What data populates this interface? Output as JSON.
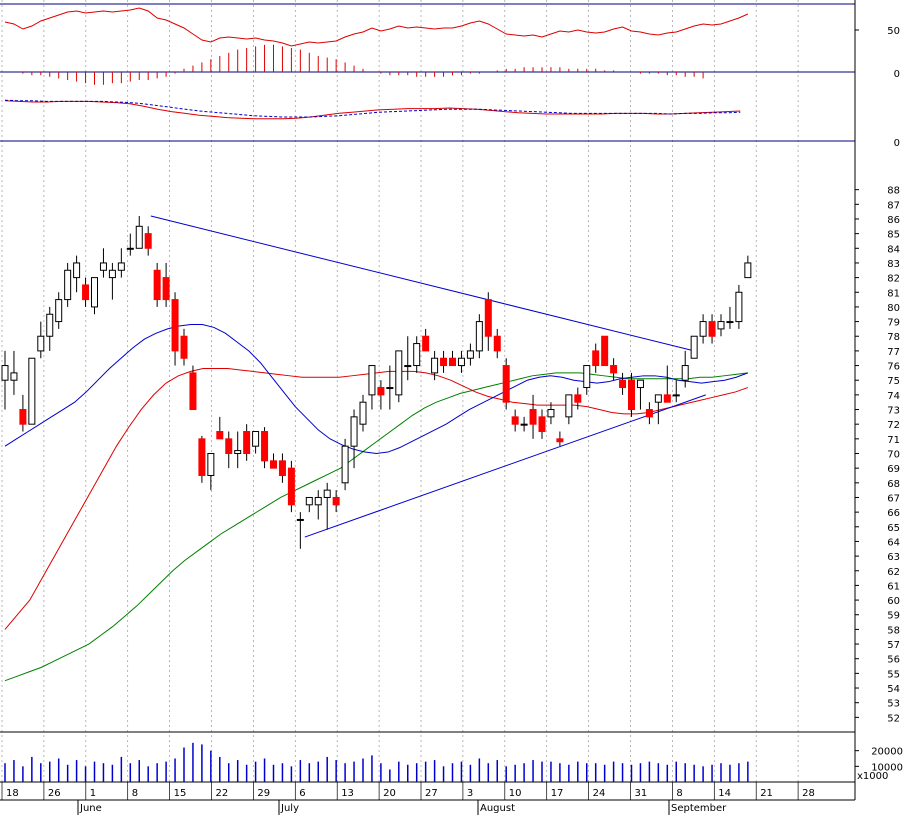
{
  "chart_data": {
    "type": "candlestick",
    "title": "",
    "colors": {
      "up": "#ffffff",
      "down": "#ff0000",
      "ma_fast": "#0000cc",
      "ma_mid": "#008000",
      "ma_slow": "#dd0000",
      "trend": "#0000cc",
      "volume": "#0000cc",
      "grid": "#999999",
      "frame": "#000080"
    },
    "price_axis": {
      "min": 51,
      "max": 89,
      "ticks": [
        52,
        53,
        54,
        55,
        56,
        57,
        58,
        59,
        60,
        61,
        62,
        63,
        64,
        65,
        66,
        67,
        68,
        69,
        70,
        71,
        72,
        73,
        74,
        75,
        76,
        77,
        78,
        79,
        80,
        81,
        82,
        83,
        84,
        85,
        86,
        87,
        88
      ]
    },
    "rsi_panel": {
      "ticks": [
        50,
        0
      ],
      "level": 50
    },
    "osc_panel": {
      "ticks": [
        0
      ],
      "values": [
        0.2,
        0.4,
        0.6,
        0.8,
        0.9,
        1.0,
        1.0,
        1.0,
        1.0,
        0.9,
        0.7,
        0.3,
        -0.2,
        -0.6,
        -0.9,
        -1.1,
        -1.3,
        -1.5,
        -1.6,
        -1.7,
        -1.6,
        -1.4,
        -1.1,
        -0.6,
        -0.3,
        -0.1,
        0.0,
        0.2,
        0.3,
        0.4,
        0.5,
        0.6,
        0.6,
        0.5,
        0.3,
        0.2,
        0.0,
        -0.1,
        -0.1,
        -0.1,
        -0.1,
        -0.1,
        -0.2,
        -0.2,
        -0.2,
        -0.1,
        0.0,
        0.0,
        0.0,
        0.1,
        0.1,
        0.2,
        0.3,
        0.4
      ]
    },
    "macd_panel": {
      "ticks": [
        0
      ],
      "macd": [
        2.2,
        2.1,
        2.0,
        2.0,
        2.1,
        2.1,
        2.1,
        2.0,
        1.9,
        1.7,
        1.3,
        0.8,
        0.4,
        0.1,
        -0.2,
        -0.4,
        -0.6,
        -0.7,
        -0.8,
        -0.8,
        -0.8,
        -0.7,
        -0.5,
        -0.2,
        0.1,
        0.3,
        0.5,
        0.7,
        0.8,
        0.9,
        0.9,
        0.9,
        1.0,
        0.9,
        0.8,
        0.6,
        0.4,
        0.2,
        0.1,
        0.0,
        0.0,
        0.0,
        0.0,
        0.0,
        0.1,
        0.1,
        0.1,
        0.0,
        0.0,
        0.1,
        0.2,
        0.3,
        0.4,
        0.5
      ],
      "signal": [
        2.3,
        2.2,
        2.2,
        2.1,
        2.1,
        2.1,
        2.1,
        2.1,
        2.0,
        1.9,
        1.7,
        1.4,
        1.1,
        0.8,
        0.5,
        0.3,
        0.1,
        -0.1,
        -0.3,
        -0.4,
        -0.5,
        -0.5,
        -0.5,
        -0.4,
        -0.3,
        -0.1,
        0.1,
        0.3,
        0.4,
        0.5,
        0.6,
        0.7,
        0.8,
        0.8,
        0.8,
        0.7,
        0.6,
        0.5,
        0.4,
        0.3,
        0.2,
        0.1,
        0.1,
        0.1,
        0.1,
        0.1,
        0.1,
        0.1,
        0.0,
        0.1,
        0.1,
        0.2,
        0.2,
        0.3
      ]
    },
    "volume_axis": {
      "ticks": [
        10000,
        20000
      ],
      "unit_label": "x1000",
      "max": 30000
    },
    "x_axis": {
      "day_labels": [
        "18",
        "26",
        "1",
        "8",
        "15",
        "22",
        "29",
        "6",
        "13",
        "20",
        "27",
        "3",
        "10",
        "17",
        "24",
        "31",
        "8",
        "14",
        "21",
        "28"
      ],
      "month_labels": [
        "June",
        "July",
        "August",
        "September"
      ]
    },
    "candles": [
      {
        "o": 75,
        "h": 77,
        "l": 73,
        "c": 76
      },
      {
        "o": 75,
        "h": 77,
        "l": 74,
        "c": 75.5
      },
      {
        "o": 73,
        "h": 74,
        "l": 71.5,
        "c": 72
      },
      {
        "o": 72,
        "h": 76.5,
        "l": 72,
        "c": 76.5
      },
      {
        "o": 77,
        "h": 79,
        "l": 76.5,
        "c": 78
      },
      {
        "o": 78,
        "h": 80,
        "l": 77,
        "c": 79.5
      },
      {
        "o": 79,
        "h": 81,
        "l": 78.5,
        "c": 80.5
      },
      {
        "o": 80.5,
        "h": 83,
        "l": 80,
        "c": 82.5
      },
      {
        "o": 82,
        "h": 83.5,
        "l": 81,
        "c": 83
      },
      {
        "o": 81.5,
        "h": 82,
        "l": 80,
        "c": 80.5
      },
      {
        "o": 80,
        "h": 82,
        "l": 79.5,
        "c": 82
      },
      {
        "o": 82.5,
        "h": 84,
        "l": 82,
        "c": 83
      },
      {
        "o": 82,
        "h": 83,
        "l": 80.5,
        "c": 82.5
      },
      {
        "o": 82.5,
        "h": 84,
        "l": 82,
        "c": 83
      },
      {
        "o": 84,
        "h": 85,
        "l": 83.5,
        "c": 84
      },
      {
        "o": 84,
        "h": 86.2,
        "l": 84,
        "c": 85.5
      },
      {
        "o": 85,
        "h": 85.5,
        "l": 83.5,
        "c": 84
      },
      {
        "o": 82.5,
        "h": 83,
        "l": 80,
        "c": 80.5
      },
      {
        "o": 82,
        "h": 83,
        "l": 80,
        "c": 80.5
      },
      {
        "o": 80.5,
        "h": 81,
        "l": 76,
        "c": 77
      },
      {
        "o": 78,
        "h": 78.5,
        "l": 76,
        "c": 76.5
      },
      {
        "o": 75.5,
        "h": 76,
        "l": 73,
        "c": 73
      },
      {
        "o": 71,
        "h": 71.2,
        "l": 68,
        "c": 68.5
      },
      {
        "o": 68.5,
        "h": 70,
        "l": 67.5,
        "c": 70
      },
      {
        "o": 71.5,
        "h": 72.5,
        "l": 71,
        "c": 71
      },
      {
        "o": 71,
        "h": 71.5,
        "l": 69,
        "c": 70
      },
      {
        "o": 70,
        "h": 71.5,
        "l": 69,
        "c": 70.2
      },
      {
        "o": 71.5,
        "h": 72,
        "l": 69.5,
        "c": 70
      },
      {
        "o": 70.5,
        "h": 71.5,
        "l": 70,
        "c": 71.5
      },
      {
        "o": 71.5,
        "h": 71.8,
        "l": 69,
        "c": 69.5
      },
      {
        "o": 69.5,
        "h": 70,
        "l": 69,
        "c": 69
      },
      {
        "o": 69.5,
        "h": 70,
        "l": 68,
        "c": 68.5
      },
      {
        "o": 69,
        "h": 69.5,
        "l": 66,
        "c": 66.5
      },
      {
        "o": 65.5,
        "h": 66,
        "l": 63.5,
        "c": 65.5
      },
      {
        "o": 66.5,
        "h": 67,
        "l": 66,
        "c": 67
      },
      {
        "o": 66.5,
        "h": 67.5,
        "l": 65.5,
        "c": 67
      },
      {
        "o": 67,
        "h": 68,
        "l": 64.8,
        "c": 67.5
      },
      {
        "o": 67,
        "h": 67.5,
        "l": 66,
        "c": 66.5
      },
      {
        "o": 68,
        "h": 71,
        "l": 67.5,
        "c": 70.5
      },
      {
        "o": 70.5,
        "h": 73,
        "l": 69,
        "c": 72.5
      },
      {
        "o": 72,
        "h": 74,
        "l": 71.5,
        "c": 73.5
      },
      {
        "o": 74,
        "h": 76,
        "l": 73,
        "c": 76
      },
      {
        "o": 74.5,
        "h": 75,
        "l": 73,
        "c": 74
      },
      {
        "o": 74.5,
        "h": 76,
        "l": 73,
        "c": 74.5
      },
      {
        "o": 74,
        "h": 77,
        "l": 73.5,
        "c": 77
      },
      {
        "o": 76,
        "h": 78,
        "l": 75,
        "c": 76
      },
      {
        "o": 76,
        "h": 78,
        "l": 75.5,
        "c": 77.5
      },
      {
        "o": 78,
        "h": 78.5,
        "l": 77,
        "c": 77
      },
      {
        "o": 75.5,
        "h": 77,
        "l": 75,
        "c": 76.5
      },
      {
        "o": 76.5,
        "h": 77,
        "l": 75.5,
        "c": 76
      },
      {
        "o": 76.5,
        "h": 77,
        "l": 76,
        "c": 76
      },
      {
        "o": 76,
        "h": 77,
        "l": 75.5,
        "c": 76.5
      },
      {
        "o": 76.5,
        "h": 77.5,
        "l": 76,
        "c": 77
      },
      {
        "o": 77,
        "h": 79.5,
        "l": 76.5,
        "c": 79
      },
      {
        "o": 80.5,
        "h": 81,
        "l": 77,
        "c": 78
      },
      {
        "o": 78,
        "h": 78.5,
        "l": 76.5,
        "c": 77
      },
      {
        "o": 76,
        "h": 76.5,
        "l": 73,
        "c": 73.5
      },
      {
        "o": 72.5,
        "h": 73,
        "l": 71.5,
        "c": 72
      },
      {
        "o": 72,
        "h": 72.5,
        "l": 71.5,
        "c": 72
      },
      {
        "o": 73,
        "h": 74,
        "l": 71,
        "c": 72
      },
      {
        "o": 72.5,
        "h": 73,
        "l": 71,
        "c": 71.5
      },
      {
        "o": 72.5,
        "h": 73.5,
        "l": 72,
        "c": 73
      },
      {
        "o": 71,
        "h": 71.5,
        "l": 70.5,
        "c": 70.8
      },
      {
        "o": 72.5,
        "h": 74,
        "l": 72,
        "c": 74
      },
      {
        "o": 74,
        "h": 74.5,
        "l": 73,
        "c": 73.5
      },
      {
        "o": 74.5,
        "h": 76,
        "l": 74,
        "c": 76
      },
      {
        "o": 77,
        "h": 77.5,
        "l": 75.5,
        "c": 76
      },
      {
        "o": 78,
        "h": 78,
        "l": 76,
        "c": 76
      },
      {
        "o": 76,
        "h": 76.5,
        "l": 75,
        "c": 75.5
      },
      {
        "o": 75,
        "h": 75.5,
        "l": 74,
        "c": 74.5
      },
      {
        "o": 75,
        "h": 75.5,
        "l": 72.5,
        "c": 73
      },
      {
        "o": 74.5,
        "h": 75,
        "l": 73,
        "c": 75
      },
      {
        "o": 73,
        "h": 73.5,
        "l": 72,
        "c": 72.5
      },
      {
        "o": 73.5,
        "h": 74,
        "l": 72,
        "c": 74
      },
      {
        "o": 74,
        "h": 76,
        "l": 73.5,
        "c": 73.5
      },
      {
        "o": 74,
        "h": 75,
        "l": 73.5,
        "c": 74
      },
      {
        "o": 75,
        "h": 77,
        "l": 74.5,
        "c": 76
      },
      {
        "o": 76.5,
        "h": 78,
        "l": 76.5,
        "c": 78
      },
      {
        "o": 78,
        "h": 79.5,
        "l": 77.5,
        "c": 79
      },
      {
        "o": 79,
        "h": 79.5,
        "l": 77.5,
        "c": 78
      },
      {
        "o": 78.5,
        "h": 79.5,
        "l": 78,
        "c": 79
      },
      {
        "o": 79,
        "h": 80,
        "l": 78.5,
        "c": 79
      },
      {
        "o": 79,
        "h": 81.5,
        "l": 78.5,
        "c": 81
      },
      {
        "o": 82,
        "h": 83.5,
        "l": 82,
        "c": 83
      }
    ],
    "volumes": [
      12000,
      14000,
      10000,
      16000,
      12000,
      13000,
      15000,
      11000,
      14000,
      10000,
      13000,
      12000,
      11000,
      16000,
      12000,
      14000,
      10000,
      12000,
      13000,
      15000,
      22000,
      25000,
      24000,
      20000,
      16000,
      12000,
      14000,
      11000,
      13000,
      15000,
      11000,
      12000,
      10000,
      14000,
      12000,
      13000,
      16000,
      14000,
      12000,
      13000,
      15000,
      17000,
      12000,
      8000,
      13000,
      11000,
      12000,
      13000,
      14000,
      10000,
      12000,
      13000,
      11000,
      15000,
      12000,
      14000,
      10000,
      11000,
      12000,
      14000,
      13000,
      13000,
      12000,
      11000,
      13000,
      12000,
      12000,
      11000,
      13000,
      12000,
      11000,
      12000,
      13000,
      12000,
      11000,
      13000,
      12000,
      11000,
      10000,
      11000,
      12000,
      11000,
      12000,
      13000
    ],
    "ma_fast": [
      70.5,
      71,
      71.5,
      72,
      72.5,
      73,
      73.5,
      74.2,
      75,
      75.8,
      76.5,
      77.2,
      77.8,
      78.2,
      78.5,
      78.7,
      78.8,
      78.8,
      78.6,
      78.2,
      77.6,
      77,
      76.2,
      75.2,
      74.2,
      73.2,
      72.4,
      71.6,
      71,
      70.6,
      70.3,
      70.1,
      70,
      70.1,
      70.4,
      70.8,
      71.2,
      71.6,
      72,
      72.5,
      73,
      73.4,
      73.8,
      74.2,
      74.6,
      75,
      75.2,
      75.3,
      75.2,
      75,
      74.9,
      74.8,
      74.9,
      75.1,
      75.2,
      75.3,
      75.3,
      75.2,
      75,
      74.9,
      74.8,
      74.9,
      75,
      75.2,
      75.5
    ],
    "ma_mid": [
      54.5,
      54.8,
      55.1,
      55.4,
      55.8,
      56.2,
      56.6,
      57,
      57.6,
      58.2,
      58.9,
      59.6,
      60.4,
      61.2,
      62,
      62.7,
      63.3,
      63.9,
      64.5,
      65,
      65.5,
      66,
      66.5,
      67,
      67.4,
      67.8,
      68.2,
      68.6,
      69,
      69.6,
      70.2,
      70.8,
      71.4,
      72,
      72.6,
      73.1,
      73.5,
      73.8,
      74.1,
      74.3,
      74.5,
      74.7,
      74.9,
      75.1,
      75.3,
      75.4,
      75.5,
      75.5,
      75.5,
      75.4,
      75.3,
      75.2,
      75.1,
      75.1,
      75.1,
      75.1,
      75.1,
      75.1,
      75.2,
      75.2,
      75.3,
      75.4,
      75.5
    ],
    "ma_slow": [
      58,
      59,
      60,
      61.5,
      63,
      64.5,
      66,
      67.5,
      69,
      70.5,
      71.8,
      73,
      74,
      74.8,
      75.3,
      75.6,
      75.8,
      75.8,
      75.8,
      75.7,
      75.6,
      75.5,
      75.4,
      75.3,
      75.2,
      75.2,
      75.2,
      75.2,
      75.3,
      75.4,
      75.5,
      75.6,
      75.6,
      75.6,
      75.5,
      75.3,
      75,
      74.6,
      74.2,
      73.9,
      73.7,
      73.5,
      73.4,
      73.3,
      73.3,
      73.3,
      73.3,
      73.2,
      73,
      72.8,
      72.7,
      72.7,
      72.8,
      73,
      73.2,
      73.4,
      73.6,
      73.8,
      74,
      74.2,
      74.5
    ],
    "rsi": [
      62,
      60,
      55,
      58,
      63,
      66,
      69,
      72,
      73,
      71,
      72,
      73,
      72,
      73,
      74,
      76,
      73,
      66,
      64,
      60,
      56,
      50,
      44,
      42,
      46,
      47,
      46,
      45,
      46,
      44,
      43,
      41,
      38,
      40,
      42,
      41,
      42,
      43,
      47,
      50,
      52,
      56,
      53,
      55,
      58,
      56,
      57,
      56,
      55,
      56,
      56,
      58,
      61,
      63,
      60,
      55,
      50,
      49,
      48,
      49,
      47,
      50,
      53,
      52,
      54,
      52,
      51,
      52,
      55,
      57,
      53,
      52,
      50,
      49,
      51,
      52,
      55,
      58,
      60,
      59,
      60,
      63,
      66,
      70
    ],
    "rsi_hist": [
      1,
      2,
      2,
      3,
      4,
      5,
      6,
      7,
      8,
      8,
      7,
      7,
      6,
      5,
      5,
      4,
      3,
      1,
      -2,
      -4,
      -6,
      -8,
      -10,
      -12,
      -14,
      -15,
      -16,
      -17,
      -17,
      -16,
      -15,
      -14,
      -12,
      -10,
      -9,
      -8,
      -6,
      -4,
      -2,
      0,
      1,
      2,
      2,
      2,
      3,
      3,
      3,
      3,
      2,
      2,
      1,
      1,
      0,
      -1,
      -2,
      -2,
      -3,
      -3,
      -3,
      -3,
      -3,
      -2,
      -2,
      -2,
      -2,
      -1,
      -1,
      0,
      0,
      1,
      1,
      1,
      2,
      2,
      3,
      3,
      4
    ]
  }
}
